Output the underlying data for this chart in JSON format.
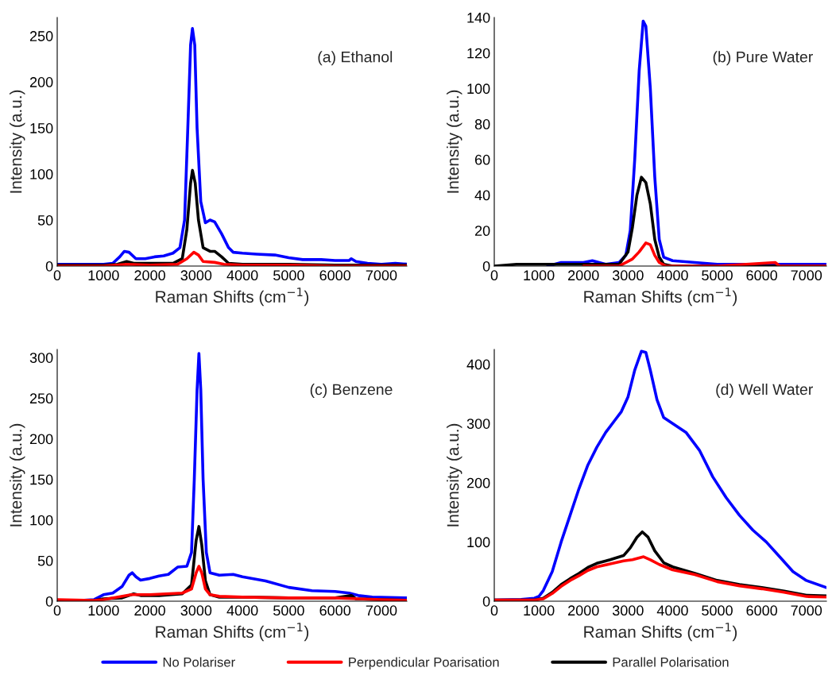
{
  "chart_data": [
    {
      "type": "line",
      "xlabel": "Raman Shifts (cm$^{−1}$)",
      "ylabel": "Intensity (a.u.)",
      "annotations": [
        "(a) Ethanol"
      ],
      "xlim": [
        0,
        7550
      ],
      "xticks": [
        0,
        1000,
        2000,
        3000,
        4000,
        5000,
        6000,
        7000
      ],
      "ylim": [
        0,
        270
      ],
      "yticks": [
        0,
        50,
        100,
        150,
        200,
        250
      ],
      "grid": false,
      "legend": false,
      "series": [
        {
          "color": "#0000ff",
          "x": [
            0,
            500,
            1000,
            1200,
            1350,
            1450,
            1550,
            1700,
            1900,
            2100,
            2300,
            2500,
            2650,
            2750,
            2820,
            2880,
            2920,
            2970,
            3020,
            3100,
            3200,
            3300,
            3400,
            3550,
            3700,
            3800,
            4000,
            4300,
            4700,
            5000,
            5300,
            5700,
            6000,
            6300,
            6350,
            6450,
            6700,
            7000,
            7300,
            7550
          ],
          "values": [
            2,
            2,
            2,
            3,
            10,
            16,
            15,
            8,
            8,
            10,
            11,
            14,
            20,
            50,
            150,
            240,
            258,
            240,
            150,
            70,
            47,
            50,
            48,
            35,
            20,
            15,
            14,
            13,
            12,
            9,
            7,
            7,
            6,
            6,
            8,
            5,
            3,
            2,
            3,
            2
          ]
        },
        {
          "color": "#ff0000",
          "x": [
            0,
            1000,
            1500,
            2000,
            2600,
            2800,
            2950,
            3050,
            3150,
            3400,
            3600,
            4000,
            5000,
            6000,
            7550
          ],
          "values": [
            0,
            0,
            2,
            1,
            2,
            8,
            15,
            12,
            5,
            4,
            2,
            1,
            1,
            0,
            0
          ]
        },
        {
          "color": "#000000",
          "x": [
            0,
            1000,
            1300,
            1500,
            1650,
            2000,
            2500,
            2700,
            2800,
            2880,
            2920,
            2980,
            3050,
            3150,
            3300,
            3400,
            3550,
            3700,
            4000,
            5000,
            6000,
            7000,
            7550
          ],
          "values": [
            1,
            1,
            2,
            5,
            3,
            3,
            3,
            8,
            40,
            90,
            104,
            90,
            50,
            20,
            16,
            16,
            10,
            3,
            2,
            2,
            1,
            1,
            1
          ]
        }
      ]
    },
    {
      "type": "line",
      "xlabel": "Raman Shifts (cm$^{−1}$)",
      "ylabel": "Intensity (a.u.)",
      "annotations": [
        "(b) Pure Water"
      ],
      "xlim": [
        0,
        7450
      ],
      "xticks": [
        0,
        1000,
        2000,
        3000,
        4000,
        5000,
        6000,
        7000
      ],
      "ylim": [
        0,
        140
      ],
      "yticks": [
        0,
        20,
        40,
        60,
        80,
        100,
        120,
        140
      ],
      "grid": false,
      "legend": false,
      "series": [
        {
          "color": "#0000ff",
          "x": [
            1200,
            1500,
            2000,
            2200,
            2500,
            2800,
            2950,
            3050,
            3150,
            3250,
            3340,
            3400,
            3500,
            3600,
            3700,
            3800,
            4000,
            4500,
            5000,
            6000,
            7000,
            7450
          ],
          "values": [
            0,
            2,
            2,
            3,
            1,
            2,
            6,
            20,
            60,
            110,
            138,
            135,
            100,
            50,
            15,
            5,
            3,
            2,
            1,
            1,
            1,
            1
          ]
        },
        {
          "color": "#ff0000",
          "x": [
            2000,
            2800,
            3100,
            3250,
            3400,
            3500,
            3600,
            3700,
            3850,
            5000,
            6300,
            6400,
            7450
          ],
          "values": [
            0,
            0,
            4,
            8,
            13,
            12,
            6,
            2,
            0,
            0,
            2,
            0,
            0
          ]
        },
        {
          "color": "#000000",
          "x": [
            0,
            500,
            1000,
            1500,
            2000,
            2500,
            2800,
            3000,
            3100,
            3200,
            3300,
            3400,
            3500,
            3600,
            3700,
            3800,
            4000,
            5000,
            6000,
            7450
          ],
          "values": [
            0,
            1,
            1,
            1,
            1,
            1,
            1,
            8,
            22,
            40,
            50,
            47,
            35,
            15,
            5,
            1,
            0,
            0,
            0,
            0
          ]
        }
      ]
    },
    {
      "type": "line",
      "xlabel": "Raman Shifts (cm$^{−1}$)",
      "ylabel": "Intensity (a.u.)",
      "annotations": [
        "(c) Benzene"
      ],
      "xlim": [
        0,
        7550
      ],
      "xticks": [
        0,
        1000,
        2000,
        3000,
        4000,
        5000,
        6000,
        7000
      ],
      "ylim": [
        0,
        310
      ],
      "yticks": [
        0,
        50,
        100,
        150,
        200,
        250,
        300
      ],
      "grid": false,
      "legend": false,
      "series": [
        {
          "color": "#0000ff",
          "x": [
            0,
            500,
            800,
            1000,
            1200,
            1400,
            1550,
            1620,
            1700,
            1800,
            2000,
            2200,
            2400,
            2600,
            2800,
            2900,
            2960,
            3020,
            3060,
            3100,
            3150,
            3220,
            3300,
            3500,
            3800,
            4000,
            4500,
            5000,
            5500,
            6000,
            6300,
            6500,
            6800,
            7550
          ],
          "values": [
            1,
            1,
            2,
            8,
            10,
            18,
            32,
            35,
            30,
            26,
            28,
            31,
            33,
            42,
            43,
            60,
            150,
            260,
            305,
            260,
            150,
            60,
            35,
            32,
            33,
            30,
            25,
            17,
            13,
            12,
            10,
            7,
            5,
            4
          ]
        },
        {
          "color": "#ff0000",
          "x": [
            0,
            800,
            1000,
            1600,
            2000,
            2700,
            2900,
            3000,
            3060,
            3120,
            3200,
            3300,
            3500,
            4000,
            5000,
            6000,
            6500,
            7000,
            7550
          ],
          "values": [
            2,
            1,
            2,
            8,
            8,
            10,
            15,
            35,
            43,
            35,
            15,
            8,
            6,
            5,
            4,
            4,
            3,
            2,
            1
          ]
        },
        {
          "color": "#000000",
          "x": [
            0,
            800,
            1000,
            1400,
            1650,
            1800,
            2200,
            2700,
            2900,
            3000,
            3060,
            3120,
            3200,
            3300,
            3500,
            4000,
            5000,
            6000,
            6350,
            6450,
            7000,
            7550
          ],
          "values": [
            0,
            1,
            3,
            4,
            9,
            7,
            7,
            9,
            20,
            75,
            92,
            70,
            25,
            8,
            5,
            5,
            4,
            4,
            7,
            3,
            2,
            1
          ]
        }
      ]
    },
    {
      "type": "line",
      "xlabel": "Raman Shifts (cm$^{−1}$)",
      "ylabel": "Intensity (a.u.)",
      "annotations": [
        "(d) Well Water"
      ],
      "xlim": [
        0,
        7450
      ],
      "xticks": [
        0,
        1000,
        2000,
        3000,
        4000,
        5000,
        6000,
        7000
      ],
      "ylim": [
        0,
        425
      ],
      "yticks": [
        0,
        100,
        200,
        300,
        400
      ],
      "grid": false,
      "legend": "bottom",
      "series": [
        {
          "name": "No Polariser",
          "color": "#0000ff",
          "x": [
            0,
            600,
            900,
            1000,
            1100,
            1300,
            1500,
            1700,
            1900,
            2100,
            2300,
            2500,
            2700,
            2850,
            3000,
            3150,
            3300,
            3400,
            3500,
            3650,
            3800,
            4000,
            4300,
            4600,
            4900,
            5200,
            5500,
            5800,
            6100,
            6400,
            6700,
            7000,
            7450
          ],
          "values": [
            2,
            3,
            5,
            8,
            18,
            50,
            100,
            145,
            190,
            230,
            260,
            285,
            305,
            320,
            345,
            390,
            422,
            420,
            390,
            340,
            310,
            300,
            285,
            255,
            210,
            175,
            145,
            120,
            100,
            75,
            50,
            35,
            23
          ]
        },
        {
          "name": "Perpendicular Poarisation",
          "color": "#ff0000",
          "x": [
            0,
            900,
            1100,
            1300,
            1500,
            1700,
            1900,
            2100,
            2300,
            2600,
            2900,
            3100,
            3350,
            3500,
            3700,
            4000,
            4500,
            5000,
            5500,
            6000,
            6500,
            7000,
            7450
          ],
          "values": [
            2,
            2,
            4,
            13,
            25,
            35,
            43,
            52,
            58,
            63,
            68,
            70,
            75,
            70,
            62,
            53,
            45,
            33,
            26,
            21,
            15,
            8,
            7
          ]
        },
        {
          "name": "Parallel Polarisation",
          "color": "#000000",
          "x": [
            0,
            500,
            900,
            1100,
            1300,
            1500,
            1700,
            1900,
            2100,
            2300,
            2600,
            2900,
            3050,
            3200,
            3320,
            3450,
            3600,
            3800,
            4000,
            4500,
            5000,
            5500,
            6000,
            6500,
            7000,
            7450
          ],
          "values": [
            2,
            2,
            2,
            5,
            15,
            28,
            38,
            47,
            57,
            64,
            70,
            77,
            90,
            108,
            117,
            108,
            85,
            65,
            58,
            47,
            35,
            28,
            23,
            17,
            10,
            9
          ]
        }
      ]
    }
  ]
}
